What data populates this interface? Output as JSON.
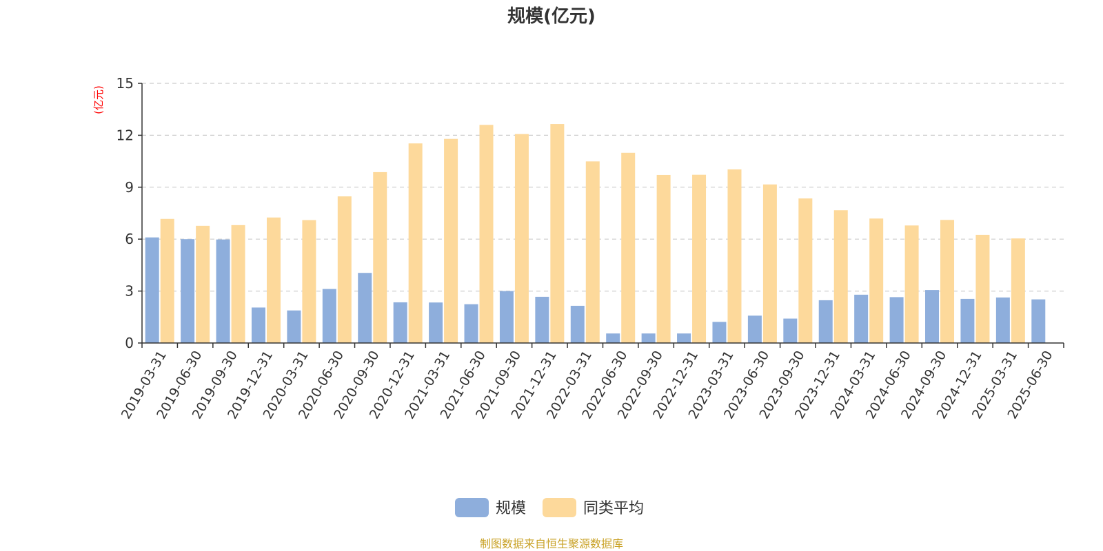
{
  "chart_data": {
    "type": "bar",
    "title": "规模(亿元)",
    "ylabel": "(亿元)",
    "xlabel": "",
    "ylim": [
      0,
      15
    ],
    "yticks": [
      0,
      3,
      6,
      9,
      12,
      15
    ],
    "grid": true,
    "legend_position": "bottom",
    "categories": [
      "2019-03-31",
      "2019-06-30",
      "2019-09-30",
      "2019-12-31",
      "2020-03-31",
      "2020-06-30",
      "2020-09-30",
      "2020-12-31",
      "2021-03-31",
      "2021-06-30",
      "2021-09-30",
      "2021-12-31",
      "2022-03-31",
      "2022-06-30",
      "2022-09-30",
      "2022-12-31",
      "2023-03-31",
      "2023-06-30",
      "2023-09-30",
      "2023-12-31",
      "2024-03-31",
      "2024-06-30",
      "2024-09-30",
      "2024-12-31",
      "2025-03-31",
      "2025-06-30"
    ],
    "series": [
      {
        "name": "规模",
        "color": "#8eaedc",
        "values": [
          6.1,
          6.0,
          5.98,
          2.05,
          1.88,
          3.12,
          4.05,
          2.35,
          2.34,
          2.24,
          3.0,
          2.67,
          2.15,
          0.55,
          0.55,
          0.55,
          1.22,
          1.58,
          1.41,
          2.47,
          2.79,
          2.65,
          3.06,
          2.55,
          2.63,
          2.52
        ]
      },
      {
        "name": "同类平均",
        "color": "#fdd99b",
        "values": [
          7.17,
          6.77,
          6.81,
          7.25,
          7.1,
          8.47,
          9.87,
          11.53,
          11.79,
          12.6,
          12.07,
          12.65,
          10.49,
          10.99,
          9.71,
          9.72,
          10.03,
          9.16,
          8.35,
          7.67,
          7.19,
          6.79,
          7.11,
          6.25,
          6.04,
          null
        ]
      }
    ],
    "unit_label_color": "#ff0000",
    "source": "制图数据来自恒生聚源数据库",
    "source_color": "#c9a227",
    "axis_color": "#333333",
    "grid_color": "#cccccc"
  }
}
